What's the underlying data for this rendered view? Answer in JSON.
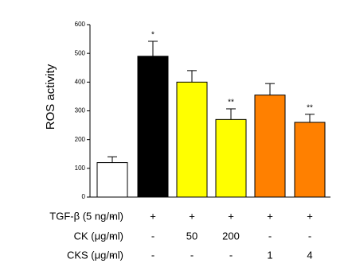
{
  "chart_data": {
    "type": "bar",
    "y_label": "ROS activity",
    "values": [
      120,
      490,
      400,
      270,
      355,
      260
    ],
    "errors": [
      20,
      52,
      40,
      37,
      40,
      28
    ],
    "colors": [
      "#ffffff",
      "#000000",
      "#ffff00",
      "#ffff00",
      "#ff8000",
      "#ff8000"
    ],
    "annotations": [
      null,
      "*",
      null,
      "**",
      null,
      "**"
    ],
    "ylim": [
      0,
      600
    ],
    "yticks": [
      0,
      100,
      200,
      300,
      400,
      500,
      600
    ],
    "grid": false
  },
  "conditions": [
    {
      "label": "TGF-β (5 ng/ml)",
      "values": [
        "-",
        "+",
        "+",
        "+",
        "+",
        "+"
      ]
    },
    {
      "label": "CK (μg/ml)",
      "values": [
        "-",
        "-",
        "50",
        "200",
        "-",
        "-"
      ]
    },
    {
      "label": "CKS (μg/ml)",
      "values": [
        "-",
        "-",
        "-",
        "-",
        "1",
        "4"
      ]
    }
  ]
}
